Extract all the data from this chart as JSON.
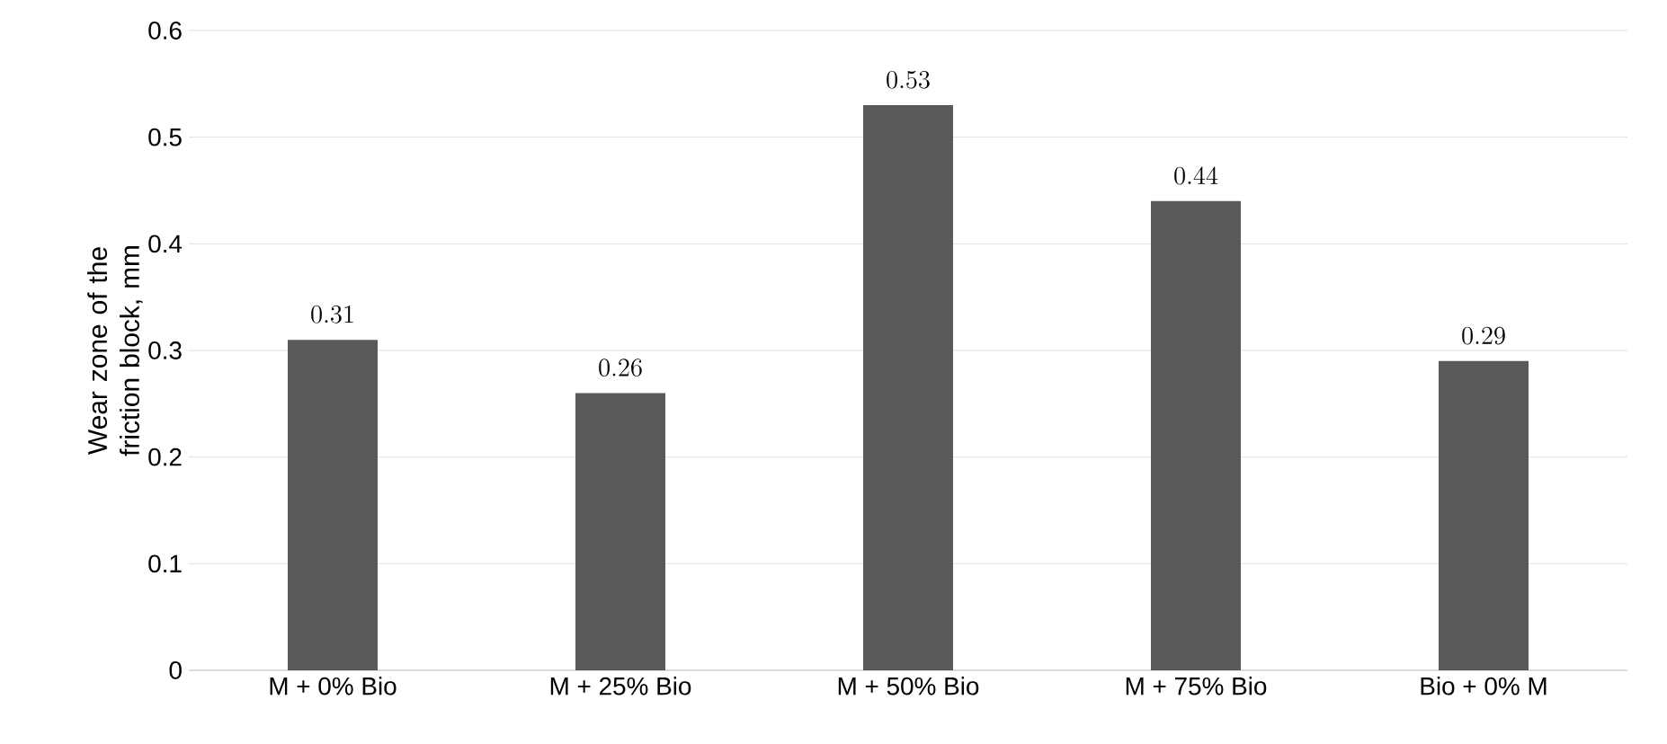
{
  "chart_data": {
    "type": "bar",
    "ylabel": "Wear zone of the friction block, mm",
    "categories": [
      "M + 0% Bio",
      "M + 25% Bio",
      "M + 50% Bio",
      "M + 75% Bio",
      "Bio + 0% M"
    ],
    "values": [
      0.31,
      0.26,
      0.53,
      0.44,
      0.29
    ],
    "color": "#595959",
    "ylim": [
      0,
      0.6
    ],
    "yticks": [
      0,
      0.1,
      0.2,
      0.3,
      0.4,
      0.5,
      0.6
    ],
    "grid": "y",
    "data_labels": true
  }
}
